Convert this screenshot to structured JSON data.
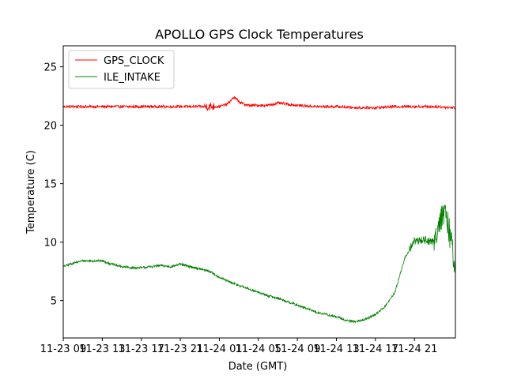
{
  "chart_data": {
    "type": "line",
    "title": "APOLLO GPS Clock Temperatures",
    "xlabel": "Date (GMT)",
    "ylabel": "Temperature (C)",
    "x_unit": "hours",
    "xlim": [
      0.0,
      40.2
    ],
    "ylim": [
      1.8,
      26.8
    ],
    "x_ticks": [
      {
        "value": 0,
        "label": "11-23 09"
      },
      {
        "value": 4,
        "label": "11-23 13"
      },
      {
        "value": 8,
        "label": "11-23 17"
      },
      {
        "value": 12,
        "label": "11-23 21"
      },
      {
        "value": 16,
        "label": "11-24 01"
      },
      {
        "value": 20,
        "label": "11-24 05"
      },
      {
        "value": 24,
        "label": "11-24 09"
      },
      {
        "value": 28,
        "label": "11-24 13"
      },
      {
        "value": 32,
        "label": "11-24 17"
      },
      {
        "value": 36,
        "label": "11-24 21"
      }
    ],
    "y_ticks": [
      5,
      10,
      15,
      20,
      25
    ],
    "legend_position": "top-left",
    "grid": false,
    "series": [
      {
        "name": "GPS_CLOCK",
        "color": "#ff0000",
        "x": [
          0,
          2,
          4,
          6,
          8,
          10,
          12,
          14,
          15,
          16,
          16.8,
          17.5,
          18.2,
          19,
          20,
          21,
          22,
          23,
          24,
          26,
          28,
          30,
          32,
          34,
          36,
          38,
          40.2
        ],
        "y": [
          21.6,
          21.6,
          21.6,
          21.6,
          21.6,
          21.6,
          21.6,
          21.6,
          21.6,
          21.6,
          21.8,
          22.4,
          21.9,
          21.7,
          21.7,
          21.7,
          21.9,
          21.8,
          21.7,
          21.6,
          21.6,
          21.5,
          21.5,
          21.6,
          21.6,
          21.6,
          21.5
        ]
      },
      {
        "name": "ILE_INTAKE",
        "color": "#008000",
        "x": [
          0,
          1,
          2,
          3,
          4,
          5,
          6,
          7,
          8,
          9,
          10,
          11,
          12,
          13,
          14,
          15,
          16,
          17,
          18,
          19,
          20,
          21,
          22,
          23,
          24,
          25,
          26,
          27,
          28,
          29,
          30,
          31,
          32,
          33,
          34,
          35,
          36,
          37,
          38,
          38.5,
          39,
          39.5,
          40.2
        ],
        "y": [
          7.9,
          8.2,
          8.4,
          8.4,
          8.4,
          8.1,
          7.9,
          7.8,
          7.8,
          7.9,
          8.0,
          7.9,
          8.1,
          7.9,
          7.7,
          7.5,
          7.0,
          6.6,
          6.3,
          6.0,
          5.7,
          5.4,
          5.2,
          4.9,
          4.6,
          4.3,
          4.0,
          3.8,
          3.6,
          3.3,
          3.2,
          3.4,
          3.8,
          4.5,
          5.7,
          8.6,
          10.1,
          10.2,
          10.0,
          11.8,
          12.4,
          11.3,
          8.0
        ]
      }
    ]
  }
}
